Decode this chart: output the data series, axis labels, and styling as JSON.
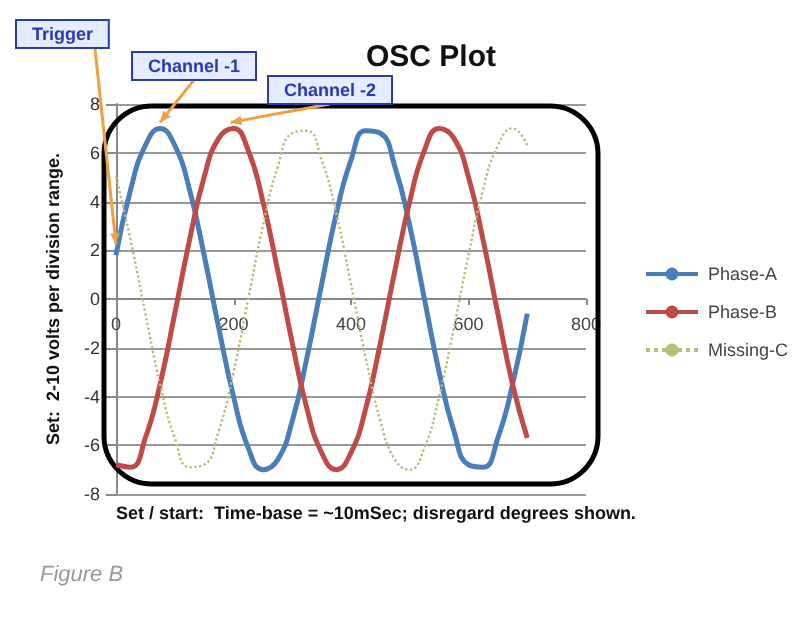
{
  "chart_data": {
    "type": "line",
    "title": "OSC Plot",
    "xlabel": "Set / start:  Time-base = ~10mSec; disregard degrees shown.",
    "ylabel": "Set:  2-10 volts per division range.",
    "x": [
      0,
      25,
      50,
      75,
      100,
      125,
      150,
      175,
      200,
      225,
      250,
      275,
      300,
      325,
      350,
      375,
      400,
      425,
      450,
      475,
      500,
      525,
      550,
      575,
      600,
      625,
      650,
      675,
      700
    ],
    "series": [
      {
        "name": "Phase-A",
        "color": "#4a7ebb",
        "line_style": "solid",
        "values": [
          1.8,
          4.5,
          6.3,
          7,
          6.3,
          4.5,
          1.8,
          -1.2,
          -4,
          -6.1,
          -7,
          -6.6,
          -5,
          -2.4,
          0.6,
          3.5,
          5.7,
          6.9,
          6.8,
          5.4,
          3,
          0,
          -3,
          -5.4,
          -6.8,
          -6.9,
          -5.7,
          -3.5,
          -0.6
        ]
      },
      {
        "name": "Phase-B",
        "color": "#be4b48",
        "line_style": "solid",
        "values": [
          -6.8,
          -6.9,
          -5.7,
          -3.5,
          -0.6,
          2.4,
          5,
          6.6,
          7,
          6.1,
          4,
          1.2,
          -1.8,
          -4.5,
          -6.3,
          -7,
          -6.3,
          -4.5,
          -1.8,
          1.2,
          4,
          6.1,
          7,
          6.6,
          5,
          2.4,
          -0.6,
          -3.5,
          -5.7
        ]
      },
      {
        "name": "Missing-C",
        "color": "#b8bd78",
        "line_style": "dotted",
        "values": [
          5,
          2.4,
          -0.6,
          -3.5,
          -5.7,
          -6.9,
          -6.8,
          -5.4,
          -3,
          0,
          3,
          5.4,
          6.8,
          6.9,
          5.7,
          3.5,
          0.6,
          -2.4,
          -5,
          -6.6,
          -7,
          -6.1,
          -4,
          -1.2,
          1.8,
          4.5,
          6.3,
          7,
          6.3
        ]
      }
    ],
    "xlim": [
      0,
      800
    ],
    "xticks": [
      0,
      200,
      400,
      600,
      800
    ],
    "ylim": [
      -8,
      8
    ],
    "yticks": [
      -8,
      -6,
      -4,
      -2,
      0,
      2,
      4,
      6,
      8
    ],
    "grid": "y",
    "legend": "right",
    "marker": "none",
    "annotations": [
      {
        "text": "Trigger",
        "x": 0,
        "y": 2
      },
      {
        "text": "Channel -1",
        "x": 75,
        "y": 7
      },
      {
        "text": "Channel -2",
        "x": 195,
        "y": 7
      },
      "Figure B"
    ]
  }
}
